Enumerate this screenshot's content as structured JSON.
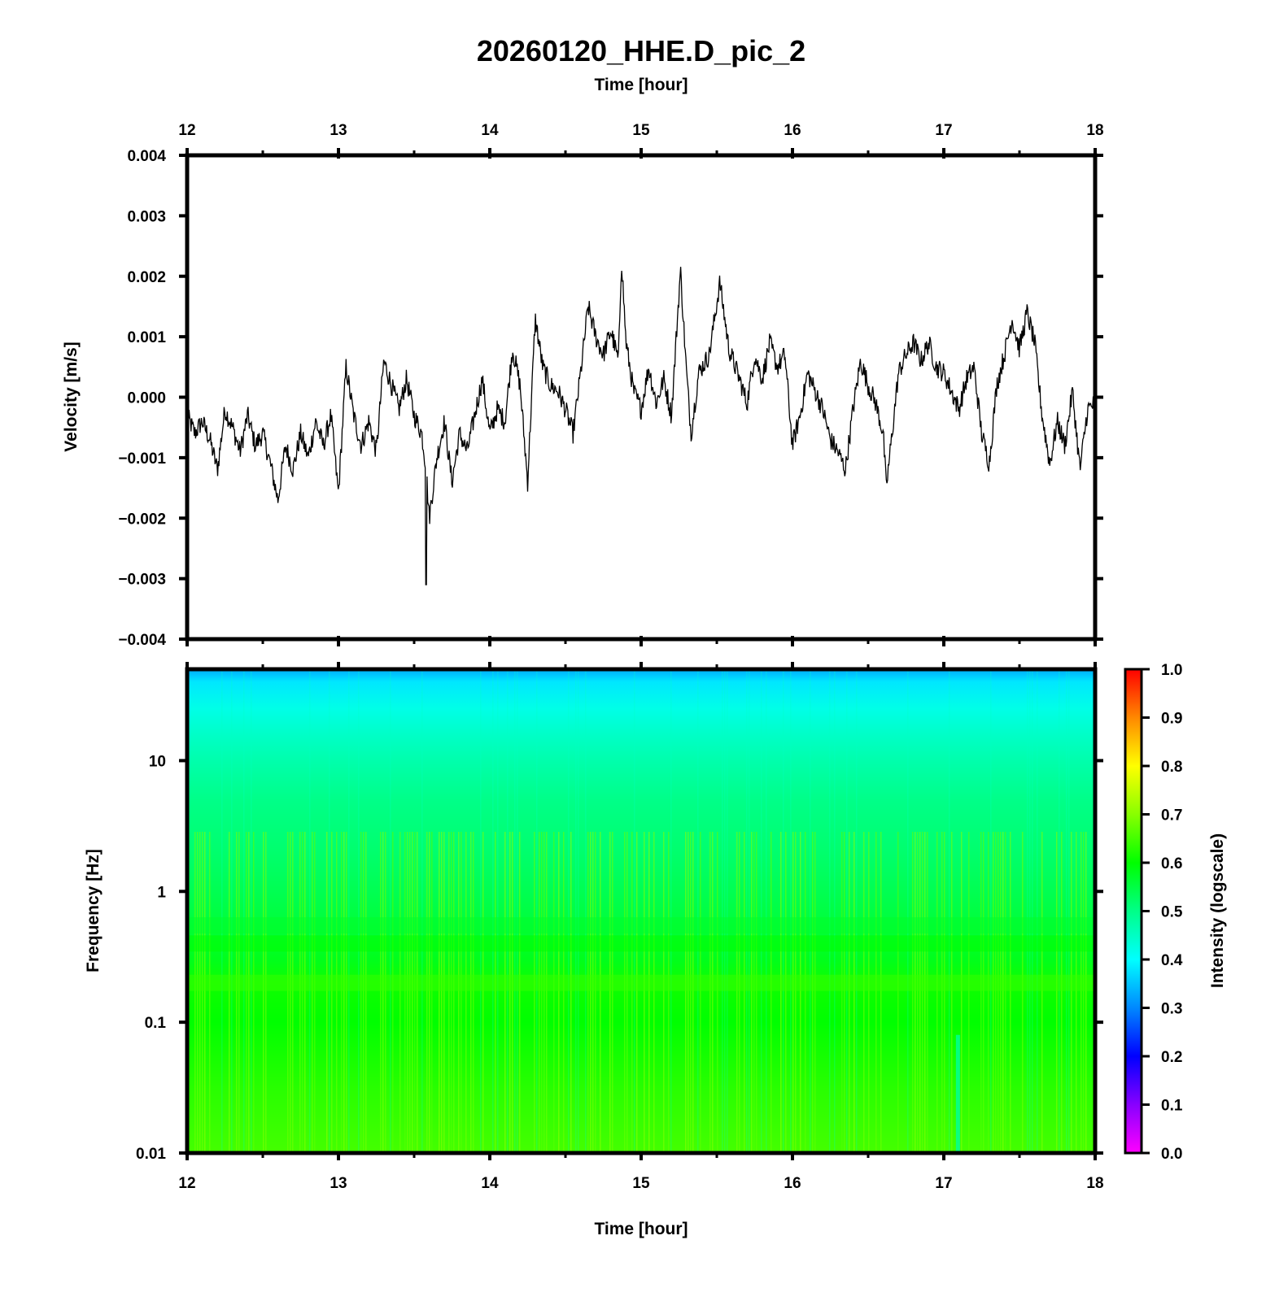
{
  "chart_data": [
    {
      "type": "line",
      "title": "20260120_HHE.D_pic_2",
      "top_xlabel": "Time [hour]",
      "xlabel": "",
      "ylabel": "Velocity [m/s]",
      "xlim": [
        12,
        18
      ],
      "ylim": [
        -0.004,
        0.004
      ],
      "xticks": [
        "12",
        "13",
        "14",
        "15",
        "16",
        "17",
        "18"
      ],
      "yticks": [
        "0.004",
        "0.003",
        "0.002",
        "0.001",
        "0.000",
        "−0.001",
        "−0.002",
        "−0.003",
        "−0.004"
      ],
      "grid": false,
      "line_color": "#000000",
      "series": [
        {
          "x": [
            12.0,
            12.05,
            12.1,
            12.15,
            12.2,
            12.25,
            12.3,
            12.35,
            12.4,
            12.45,
            12.5,
            12.55,
            12.6,
            12.65,
            12.7,
            12.75,
            12.8,
            12.85,
            12.9,
            12.95,
            13.0,
            13.05,
            13.1,
            13.15,
            13.2,
            13.25,
            13.3,
            13.35,
            13.4,
            13.45,
            13.5,
            13.55,
            13.58,
            13.6,
            13.65,
            13.7,
            13.75,
            13.8,
            13.85,
            13.9,
            13.95,
            14.0,
            14.05,
            14.1,
            14.15,
            14.2,
            14.25,
            14.3,
            14.35,
            14.4,
            14.45,
            14.5,
            14.55,
            14.6,
            14.65,
            14.7,
            14.75,
            14.8,
            14.85,
            14.87,
            14.9,
            14.95,
            15.0,
            15.05,
            15.1,
            15.15,
            15.2,
            15.26,
            15.3,
            15.33,
            15.38,
            15.45,
            15.52,
            15.58,
            15.65,
            15.7,
            15.75,
            15.8,
            15.85,
            15.9,
            15.95,
            16.0,
            16.05,
            16.1,
            16.15,
            16.2,
            16.25,
            16.3,
            16.35,
            16.4,
            16.45,
            16.5,
            16.55,
            16.6,
            16.62,
            16.65,
            16.7,
            16.75,
            16.8,
            16.85,
            16.9,
            16.95,
            17.0,
            17.05,
            17.1,
            17.15,
            17.2,
            17.25,
            17.3,
            17.35,
            17.4,
            17.45,
            17.5,
            17.55,
            17.6,
            17.65,
            17.7,
            17.75,
            17.8,
            17.85,
            17.9,
            17.95,
            18.0
          ],
          "y": [
            -0.0003,
            -0.0006,
            -0.0004,
            -0.0007,
            -0.0012,
            -0.0002,
            -0.0005,
            -0.0009,
            -0.0003,
            -0.0008,
            -0.0006,
            -0.0011,
            -0.0017,
            -0.0008,
            -0.0012,
            -0.0006,
            -0.001,
            -0.0004,
            -0.0008,
            -0.0003,
            -0.0016,
            0.0005,
            -0.0003,
            -0.0008,
            -0.0004,
            -0.0009,
            0.0006,
            0.0002,
            -0.0002,
            0.0003,
            -0.0003,
            -0.0006,
            -0.0012,
            -0.002,
            -0.001,
            -0.0004,
            -0.0014,
            -0.0006,
            -0.0009,
            -0.0003,
            0.0003,
            -0.0006,
            -0.0002,
            -0.0004,
            0.0008,
            0.0002,
            -0.0014,
            0.0013,
            0.0005,
            0.0002,
            0.0001,
            -0.0002,
            -0.0006,
            0.0004,
            0.0015,
            0.001,
            0.0007,
            0.0011,
            0.0006,
            0.0023,
            0.0009,
            0.0001,
            -0.0002,
            0.0005,
            -0.0001,
            0.0003,
            -0.0003,
            0.0021,
            0.0004,
            -0.0006,
            0.0004,
            0.0007,
            0.0019,
            0.0008,
            0.0003,
            -0.0001,
            0.0007,
            0.0003,
            0.0009,
            0.0005,
            0.0007,
            -0.0008,
            -0.0003,
            0.0004,
            0.0001,
            -0.0002,
            -0.0007,
            -0.0009,
            -0.0012,
            -0.0002,
            0.0006,
            0.0002,
            -0.0001,
            -0.0006,
            -0.0015,
            -0.0008,
            0.0004,
            0.0007,
            0.0009,
            0.0006,
            0.0009,
            0.0005,
            0.0004,
            0.0001,
            -0.0002,
            0.0003,
            0.0005,
            -0.0006,
            -0.0011,
            0.0002,
            0.0007,
            0.0013,
            0.0008,
            0.0014,
            0.0009,
            -0.0003,
            -0.0011,
            -0.0004,
            -0.0008,
            0.0001,
            -0.0012,
            -0.0002,
            -0.0001
          ]
        }
      ]
    },
    {
      "type": "heatmap",
      "xlabel": "Time [hour]",
      "ylabel": "Frequency [Hz]",
      "xlim": [
        12,
        18
      ],
      "ylim": [
        0.01,
        50
      ],
      "yscale": "log",
      "xticks": [
        "12",
        "13",
        "14",
        "15",
        "16",
        "17",
        "18"
      ],
      "yticks": [
        "10",
        "1",
        "0.1",
        "0.01"
      ],
      "colorbar": {
        "label": "Intensity (logscale)",
        "range": [
          0.0,
          1.0
        ],
        "ticks": [
          "1.0",
          "0.9",
          "0.8",
          "0.7",
          "0.6",
          "0.5",
          "0.4",
          "0.3",
          "0.2",
          "0.1",
          "0.0"
        ],
        "colors": [
          "#ff00ff",
          "#8800ff",
          "#0000ff",
          "#0088ff",
          "#00ffff",
          "#00ff88",
          "#00ff00",
          "#88ff00",
          "#ffff00",
          "#ff8800",
          "#ff0000"
        ]
      },
      "frequency_intensity_profile": {
        "frequency_hz": [
          50,
          40,
          25,
          15,
          10,
          5,
          2,
          1,
          0.5,
          0.3,
          0.2,
          0.1,
          0.03,
          0.01
        ],
        "intensity": [
          0.33,
          0.38,
          0.42,
          0.45,
          0.47,
          0.5,
          0.52,
          0.54,
          0.56,
          0.58,
          0.61,
          0.6,
          0.63,
          0.65
        ]
      }
    }
  ]
}
